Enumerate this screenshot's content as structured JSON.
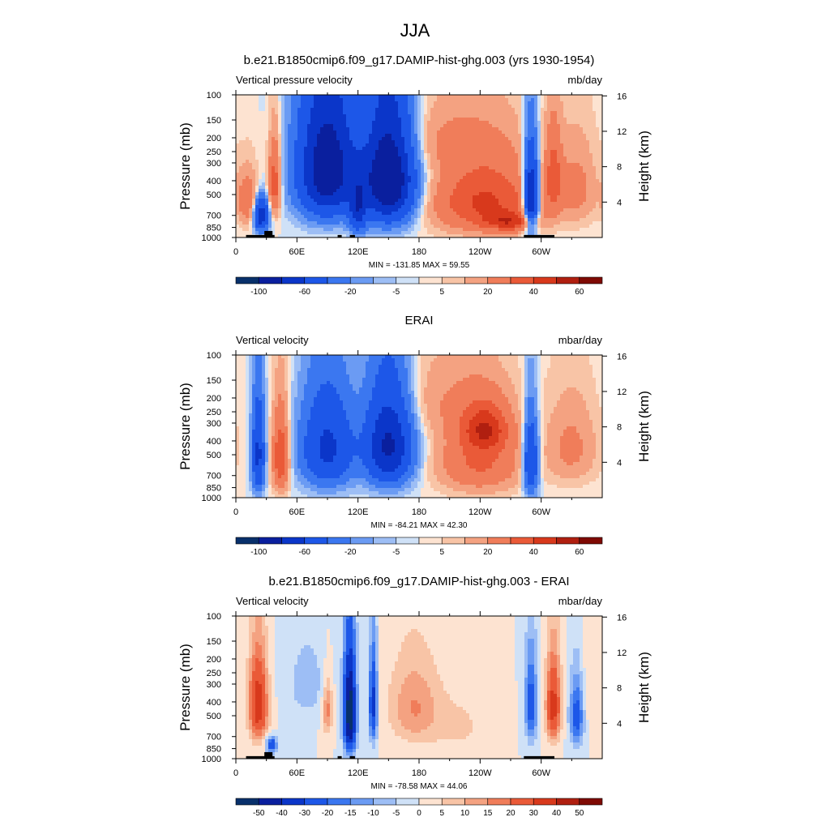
{
  "figure": {
    "title": "JJA"
  },
  "palettes": {
    "main": [
      "#08306b",
      "#0a1f9e",
      "#0b36c9",
      "#1d57e8",
      "#3b77f0",
      "#6b9bf3",
      "#9dbef5",
      "#cfe1f7",
      "#fde3d1",
      "#f8c4a6",
      "#f4a281",
      "#f07d5a",
      "#ea5a38",
      "#d8391c",
      "#b01f10",
      "#7f0a04"
    ],
    "diff": [
      "#08306b",
      "#0a1f9e",
      "#0b36c9",
      "#1d57e8",
      "#3b77f0",
      "#6b9bf3",
      "#9dbef5",
      "#cfe1f7",
      "#fde3d1",
      "#f8c4a6",
      "#f4a281",
      "#f07d5a",
      "#ea5a38",
      "#d8391c",
      "#b01f10",
      "#7f0a04"
    ]
  },
  "panels": [
    {
      "title": "b.e21.B1850cmip6.f09_g17.DAMIP-hist-ghg.003 (yrs 1930-1954)",
      "left_label": "Vertical pressure velocity",
      "right_label": "mb/day",
      "ylabel": "Pressure (mb)",
      "ylabel_right": "Height (km)",
      "stats": "MIN = -131.85  MAX =  59.55",
      "palette": "main",
      "colorbar_labels": [
        "-100",
        "-60",
        "-20",
        "-5",
        "5",
        "20",
        "40",
        "60"
      ],
      "chart_data": {
        "type": "heatmap",
        "x_ticks": [
          "0",
          "60E",
          "120E",
          "180",
          "120W",
          "60W"
        ],
        "x_tick_values": [
          0,
          60,
          120,
          180,
          240,
          300
        ],
        "x_range": [
          0,
          360
        ],
        "y_ticks": [
          "100",
          "150",
          "200",
          "250",
          "300",
          "400",
          "500",
          "700",
          "850",
          "1000"
        ],
        "y_tick_values": [
          100,
          150,
          200,
          250,
          300,
          400,
          500,
          700,
          850,
          1000
        ],
        "y_range": [
          100,
          1000
        ],
        "y2_ticks": [
          "4",
          "8",
          "12",
          "16"
        ],
        "y2_tick_values": [
          4,
          8,
          12,
          16
        ],
        "levels": [
          -100,
          -60,
          -40,
          -20,
          -10,
          -5,
          -2,
          0,
          2,
          5,
          10,
          20,
          30,
          40,
          60
        ],
        "min": -131.85,
        "max": 59.55,
        "features": [
          {
            "lon": 12,
            "p": 550,
            "dl": 10,
            "dp": 230,
            "v": 18
          },
          {
            "lon": 25,
            "p": 700,
            "dl": 7,
            "dp": 180,
            "v": -55
          },
          {
            "lon": 38,
            "p": 420,
            "dl": 6,
            "dp": 250,
            "v": 28
          },
          {
            "lon": 90,
            "p": 330,
            "dl": 28,
            "dp": 330,
            "v": -80
          },
          {
            "lon": 150,
            "p": 380,
            "dl": 24,
            "dp": 340,
            "v": -90
          },
          {
            "lon": 120,
            "p": 650,
            "dl": 8,
            "dp": 250,
            "v": -40
          },
          {
            "lon": 245,
            "p": 560,
            "dl": 50,
            "dp": 320,
            "v": 32
          },
          {
            "lon": 270,
            "p": 780,
            "dl": 25,
            "dp": 110,
            "v": 25
          },
          {
            "lon": 290,
            "p": 520,
            "dl": 7,
            "dp": 320,
            "v": -70
          },
          {
            "lon": 312,
            "p": 380,
            "dl": 8,
            "dp": 250,
            "v": 22
          },
          {
            "lon": 335,
            "p": 450,
            "dl": 20,
            "dp": 300,
            "v": 12
          },
          {
            "lon": 190,
            "p": 200,
            "dl": 70,
            "dp": 120,
            "v": 8
          }
        ],
        "topography": [
          [
            10,
            38,
            960
          ],
          [
            28,
            36,
            900
          ],
          [
            100,
            104,
            960
          ],
          [
            112,
            117,
            960
          ],
          [
            283,
            313,
            960
          ]
        ]
      }
    },
    {
      "title": "ERAI",
      "left_label": "Vertical velocity",
      "right_label": "mbar/day",
      "ylabel": "Pressure (mb)",
      "ylabel_right": "Height (km)",
      "stats": "MIN = -84.21  MAX =  42.30",
      "palette": "main",
      "colorbar_labels": [
        "-100",
        "-60",
        "-20",
        "-5",
        "5",
        "20",
        "40",
        "60"
      ],
      "chart_data": {
        "type": "heatmap",
        "x_ticks": [
          "0",
          "60E",
          "120E",
          "180",
          "120W",
          "60W"
        ],
        "x_tick_values": [
          0,
          60,
          120,
          180,
          240,
          300
        ],
        "x_range": [
          0,
          360
        ],
        "y_ticks": [
          "100",
          "150",
          "200",
          "250",
          "300",
          "400",
          "500",
          "700",
          "850",
          "1000"
        ],
        "y_tick_values": [
          100,
          150,
          200,
          250,
          300,
          400,
          500,
          700,
          850,
          1000
        ],
        "y_range": [
          100,
          1000
        ],
        "y2_ticks": [
          "4",
          "8",
          "12",
          "16"
        ],
        "y2_tick_values": [
          4,
          8,
          12,
          16
        ],
        "levels": [
          -100,
          -60,
          -40,
          -20,
          -10,
          -5,
          -2,
          0,
          2,
          5,
          10,
          20,
          30,
          40,
          60
        ],
        "min": -84.21,
        "max": 42.3,
        "features": [
          {
            "lon": 22,
            "p": 500,
            "dl": 6,
            "dp": 350,
            "v": -45
          },
          {
            "lon": 44,
            "p": 520,
            "dl": 8,
            "dp": 330,
            "v": 30
          },
          {
            "lon": 90,
            "p": 450,
            "dl": 25,
            "dp": 330,
            "v": -45
          },
          {
            "lon": 150,
            "p": 430,
            "dl": 22,
            "dp": 320,
            "v": -65
          },
          {
            "lon": 240,
            "p": 550,
            "dl": 40,
            "dp": 320,
            "v": 22
          },
          {
            "lon": 245,
            "p": 330,
            "dl": 22,
            "dp": 120,
            "v": 28
          },
          {
            "lon": 290,
            "p": 560,
            "dl": 7,
            "dp": 330,
            "v": -45
          },
          {
            "lon": 330,
            "p": 450,
            "dl": 25,
            "dp": 300,
            "v": 12
          },
          {
            "lon": 200,
            "p": 200,
            "dl": 60,
            "dp": 140,
            "v": 7
          }
        ],
        "topography": []
      }
    },
    {
      "title": "b.e21.B1850cmip6.f09_g17.DAMIP-hist-ghg.003 - ERAI",
      "left_label": "Vertical velocity",
      "right_label": "mbar/day",
      "ylabel": "Pressure (mb)",
      "ylabel_right": "Height (km)",
      "stats": "MIN = -78.58  MAX =  44.06",
      "palette": "diff",
      "colorbar_labels": [
        "-50",
        "-40",
        "-30",
        "-20",
        "-15",
        "-10",
        "-5",
        "0",
        "5",
        "10",
        "15",
        "20",
        "30",
        "40",
        "50"
      ],
      "chart_data": {
        "type": "heatmap",
        "x_ticks": [
          "0",
          "60E",
          "120E",
          "180",
          "120W",
          "60W"
        ],
        "x_tick_values": [
          0,
          60,
          120,
          180,
          240,
          300
        ],
        "x_range": [
          0,
          360
        ],
        "y_ticks": [
          "100",
          "150",
          "200",
          "250",
          "300",
          "400",
          "500",
          "700",
          "850",
          "1000"
        ],
        "y_tick_values": [
          100,
          150,
          200,
          250,
          300,
          400,
          500,
          700,
          850,
          1000
        ],
        "y_range": [
          100,
          1000
        ],
        "y2_ticks": [
          "4",
          "8",
          "12",
          "16"
        ],
        "y2_tick_values": [
          4,
          8,
          12,
          16
        ],
        "levels": [
          -50,
          -40,
          -30,
          -20,
          -15,
          -10,
          -5,
          0,
          5,
          10,
          15,
          20,
          30,
          40,
          50
        ],
        "min": -78.58,
        "max": 44.06,
        "features": [
          {
            "lon": 22,
            "p": 420,
            "dl": 9,
            "dp": 280,
            "v": 38
          },
          {
            "lon": 35,
            "p": 800,
            "dl": 5,
            "dp": 100,
            "v": -30
          },
          {
            "lon": 90,
            "p": 450,
            "dl": 5,
            "dp": 200,
            "v": 18
          },
          {
            "lon": 112,
            "p": 480,
            "dl": 6,
            "dp": 380,
            "v": -60
          },
          {
            "lon": 135,
            "p": 420,
            "dl": 4,
            "dp": 300,
            "v": -35
          },
          {
            "lon": 175,
            "p": 440,
            "dl": 25,
            "dp": 300,
            "v": 15
          },
          {
            "lon": 70,
            "p": 300,
            "dl": 20,
            "dp": 200,
            "v": -8
          },
          {
            "lon": 220,
            "p": 600,
            "dl": 30,
            "dp": 300,
            "v": 6
          },
          {
            "lon": 290,
            "p": 420,
            "dl": 6,
            "dp": 300,
            "v": -25
          },
          {
            "lon": 312,
            "p": 430,
            "dl": 7,
            "dp": 280,
            "v": 35
          },
          {
            "lon": 335,
            "p": 500,
            "dl": 7,
            "dp": 280,
            "v": -25
          },
          {
            "lon": 350,
            "p": 300,
            "dl": 12,
            "dp": 300,
            "v": 5
          }
        ],
        "topography": [
          [
            10,
            38,
            960
          ],
          [
            28,
            36,
            900
          ],
          [
            100,
            104,
            960
          ],
          [
            112,
            117,
            960
          ],
          [
            283,
            313,
            960
          ]
        ]
      }
    }
  ]
}
